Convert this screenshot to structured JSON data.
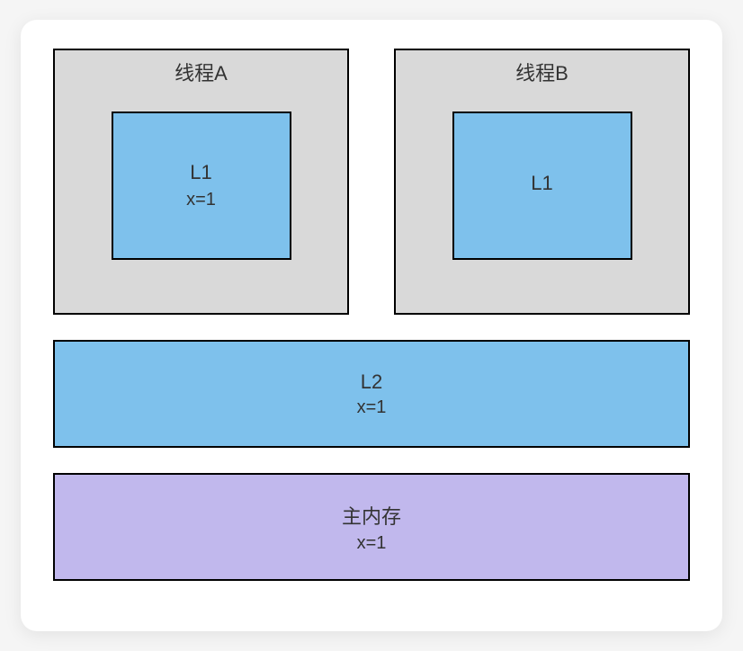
{
  "diagram": {
    "type": "infographic",
    "background_color": "#ffffff",
    "border_color": "#000000",
    "border_width": 2,
    "font_family": "sans-serif",
    "title_fontsize": 22,
    "label_fontsize": 22,
    "value_fontsize": 20,
    "text_color": "#333333"
  },
  "threads": {
    "a": {
      "title": "线程A",
      "bg_color": "#d9d9d9",
      "l1": {
        "label": "L1",
        "value": "x=1",
        "bg_color": "#7ec1ec"
      }
    },
    "b": {
      "title": "线程B",
      "bg_color": "#d9d9d9",
      "l1": {
        "label": "L1",
        "value": "",
        "bg_color": "#7ec1ec"
      }
    }
  },
  "l2": {
    "label": "L2",
    "value": "x=1",
    "bg_color": "#7ec1ec"
  },
  "memory": {
    "label": "主内存",
    "value": "x=1",
    "bg_color": "#c1b8ed"
  }
}
